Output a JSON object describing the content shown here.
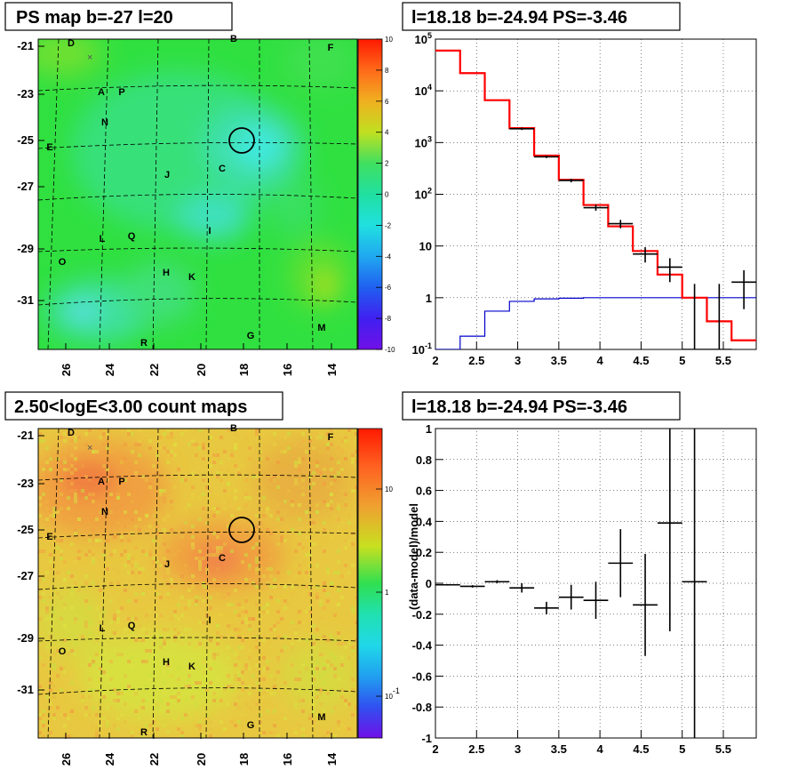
{
  "titles": {
    "top_left": "PS map b=-27 l=20",
    "top_right": "l=18.18 b=-24.94 PS=-3.46",
    "bottom_left": "2.50<logE<3.00 count maps",
    "bottom_right": "l=18.18 b=-24.94 PS=-3.46"
  },
  "chart_data": [
    {
      "id": "ps_map",
      "type": "heatmap",
      "title": "PS map b=-27 l=20",
      "x_ticks": [
        "26",
        "24",
        "22",
        "20",
        "18",
        "16",
        "14"
      ],
      "y_ticks": [
        "-21",
        "-23",
        "-25",
        "-27",
        "-29",
        "-31"
      ],
      "colorbar": {
        "ticks": [
          "10",
          "8",
          "6",
          "4",
          "2",
          "0",
          "-2",
          "-4",
          "-6",
          "-8",
          "-10"
        ],
        "range": [
          -10,
          10
        ]
      },
      "source_labels": [
        "D",
        "B",
        "F",
        "A",
        "P",
        "N",
        "E",
        "C",
        "J",
        "I",
        "L",
        "Q",
        "O",
        "H",
        "K",
        "M",
        "R",
        "G"
      ],
      "marker": {
        "label": "circle",
        "l": 18.18,
        "b": -24.94
      },
      "x_marker": "×"
    },
    {
      "id": "spectrum",
      "type": "line",
      "title": "l=18.18 b=-24.94 PS=-3.46",
      "x_ticks": [
        "2",
        "2.5",
        "3",
        "3.5",
        "4",
        "4.5",
        "5",
        "5.5"
      ],
      "y_ticks": [
        "10^-1",
        "1",
        "10",
        "10^2",
        "10^3",
        "10^4",
        "10^5"
      ],
      "y_scale": "log",
      "xlim": [
        2,
        5.9
      ],
      "ylim": [
        0.1,
        100000
      ],
      "grid": true,
      "model_red": {
        "edges": [
          2,
          2.3,
          2.6,
          2.9,
          3.2,
          3.5,
          3.8,
          4.1,
          4.4,
          4.7,
          5.0,
          5.3,
          5.6,
          5.9
        ],
        "values": [
          60000,
          22000,
          6600,
          1900,
          560,
          190,
          62,
          24,
          8,
          2.8,
          1,
          0.35,
          0.15
        ]
      },
      "model_blue": {
        "edges": [
          2,
          2.3,
          2.6,
          2.9,
          3.2,
          3.5,
          3.8,
          4.1,
          4.4,
          4.7,
          5.0,
          5.3,
          5.6,
          5.9
        ],
        "values": [
          0.1,
          0.18,
          0.55,
          0.85,
          0.95,
          0.98,
          1,
          1,
          1,
          1,
          1,
          1,
          1
        ]
      },
      "data_points": [
        {
          "x": 3.05,
          "y": 1850,
          "lo": 1750,
          "hi": 1950
        },
        {
          "x": 3.35,
          "y": 530,
          "lo": 500,
          "hi": 560
        },
        {
          "x": 3.65,
          "y": 185,
          "lo": 170,
          "hi": 200
        },
        {
          "x": 3.95,
          "y": 55,
          "lo": 48,
          "hi": 63
        },
        {
          "x": 4.25,
          "y": 27,
          "lo": 22,
          "hi": 32
        },
        {
          "x": 4.55,
          "y": 7,
          "lo": 4.8,
          "hi": 9.5
        },
        {
          "x": 4.85,
          "y": 3.9,
          "lo": 2.0,
          "hi": 5.8
        },
        {
          "x": 5.15,
          "y": 0.1,
          "lo": 0.1,
          "hi": 1.85
        },
        {
          "x": 5.45,
          "y": 0.1,
          "lo": 0.1,
          "hi": 1.85
        },
        {
          "x": 5.75,
          "y": 2,
          "lo": 0.6,
          "hi": 3.4
        }
      ]
    },
    {
      "id": "count_map",
      "type": "heatmap",
      "title": "2.50<logE<3.00 count maps",
      "x_ticks": [
        "26",
        "24",
        "22",
        "20",
        "18",
        "16",
        "14"
      ],
      "y_ticks": [
        "-21",
        "-23",
        "-25",
        "-27",
        "-29",
        "-31"
      ],
      "colorbar": {
        "ticks": [
          "10",
          "1",
          "10^-1"
        ],
        "scale": "log"
      },
      "source_labels": [
        "D",
        "B",
        "F",
        "A",
        "P",
        "N",
        "E",
        "C",
        "J",
        "I",
        "L",
        "Q",
        "O",
        "H",
        "K",
        "M",
        "R",
        "G"
      ],
      "marker": {
        "label": "circle",
        "l": 18.18,
        "b": -24.94
      },
      "x_marker": "×"
    },
    {
      "id": "residuals",
      "type": "scatter",
      "title": "l=18.18 b=-24.94 PS=-3.46",
      "ylabel": "(data-model)/model",
      "x_ticks": [
        "2",
        "2.5",
        "3",
        "3.5",
        "4",
        "4.5",
        "5",
        "5.5"
      ],
      "y_ticks": [
        "1",
        "0.8",
        "0.6",
        "0.4",
        "0.2",
        "0",
        "-0.2",
        "-0.4",
        "-0.6",
        "-0.8",
        "-1"
      ],
      "xlim": [
        2,
        5.9
      ],
      "ylim": [
        -1,
        1
      ],
      "grid": true,
      "points": [
        {
          "x": 2.15,
          "y": -0.01,
          "xerr": 0.15,
          "yerr": 0.005
        },
        {
          "x": 2.45,
          "y": -0.02,
          "xerr": 0.15,
          "yerr": 0.008
        },
        {
          "x": 2.75,
          "y": 0.01,
          "xerr": 0.15,
          "yerr": 0.01
        },
        {
          "x": 3.05,
          "y": -0.03,
          "xerr": 0.15,
          "yerr": 0.03
        },
        {
          "x": 3.35,
          "y": -0.16,
          "xerr": 0.15,
          "yerr": 0.04
        },
        {
          "x": 3.65,
          "y": -0.09,
          "xerr": 0.15,
          "yerr": 0.08
        },
        {
          "x": 3.95,
          "y": -0.11,
          "xerr": 0.15,
          "yerr": 0.12
        },
        {
          "x": 4.25,
          "y": 0.13,
          "xerr": 0.15,
          "yerr": 0.22
        },
        {
          "x": 4.55,
          "y": -0.14,
          "xerr": 0.15,
          "yerr": 0.33
        },
        {
          "x": 4.85,
          "y": 0.39,
          "xerr": 0.15,
          "yerr": 0.7
        },
        {
          "x": 5.15,
          "y": 0.01,
          "xerr": 0.15,
          "yerr": 1.2
        }
      ]
    }
  ]
}
